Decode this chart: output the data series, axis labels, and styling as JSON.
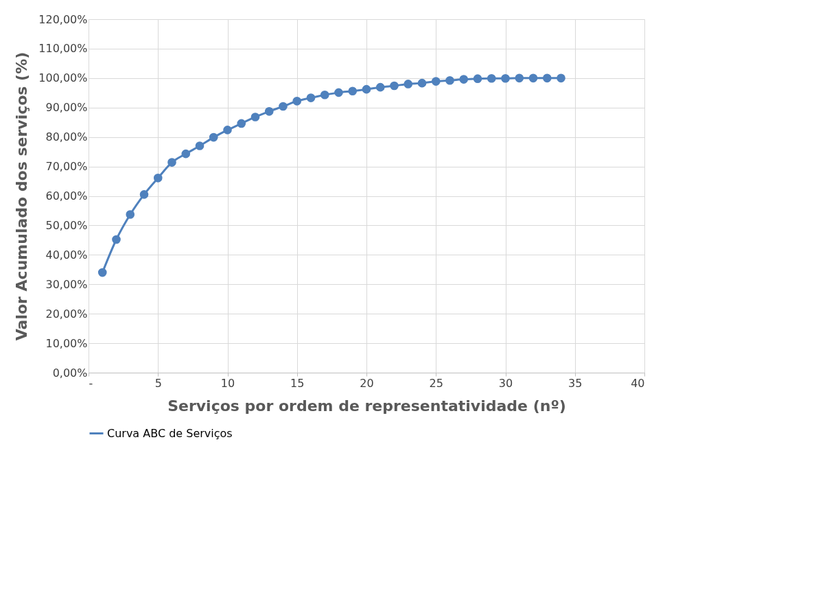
{
  "chart_data": {
    "type": "line",
    "xlabel": "Serviços por ordem de  representatividade (nº)",
    "ylabel": "Valor Acumulado dos serviços (%)",
    "x": [
      1,
      2,
      3,
      4,
      5,
      6,
      7,
      8,
      9,
      10,
      11,
      12,
      13,
      14,
      15,
      16,
      17,
      18,
      19,
      20,
      21,
      22,
      23,
      24,
      25,
      26,
      27,
      28,
      29,
      30,
      31,
      32,
      33,
      34
    ],
    "series": [
      {
        "name": "Curva ABC de Serviços",
        "color": "#4f81bd",
        "values": [
          34.0,
          45.2,
          53.7,
          60.5,
          66.1,
          71.4,
          74.3,
          77.0,
          79.9,
          82.4,
          84.6,
          86.8,
          88.7,
          90.4,
          92.2,
          93.3,
          94.3,
          95.1,
          95.6,
          96.2,
          96.9,
          97.4,
          98.0,
          98.3,
          98.9,
          99.2,
          99.6,
          99.8,
          99.9,
          99.9,
          100,
          100,
          100,
          100
        ]
      }
    ],
    "xlim": [
      0,
      40
    ],
    "xticks": [
      {
        "value": 0,
        "label": "-"
      },
      5,
      10,
      15,
      20,
      25,
      30,
      35,
      40
    ],
    "ylim": [
      0,
      120
    ],
    "yticks": [
      {
        "value": 0,
        "label": "0,00%"
      },
      {
        "value": 10,
        "label": "10,00%"
      },
      {
        "value": 20,
        "label": "20,00%"
      },
      {
        "value": 30,
        "label": "30,00%"
      },
      {
        "value": 40,
        "label": "40,00%"
      },
      {
        "value": 50,
        "label": "50,00%"
      },
      {
        "value": 60,
        "label": "60,00%"
      },
      {
        "value": 70,
        "label": "70,00%"
      },
      {
        "value": 80,
        "label": "80,00%"
      },
      {
        "value": 90,
        "label": "90,00%"
      },
      {
        "value": 100,
        "label": "100,00%"
      },
      {
        "value": 110,
        "label": "110,00%"
      },
      {
        "value": 120,
        "label": "120,00%"
      }
    ],
    "grid": true,
    "legend": "bottom",
    "marker": "circle",
    "line_style": "solid"
  }
}
